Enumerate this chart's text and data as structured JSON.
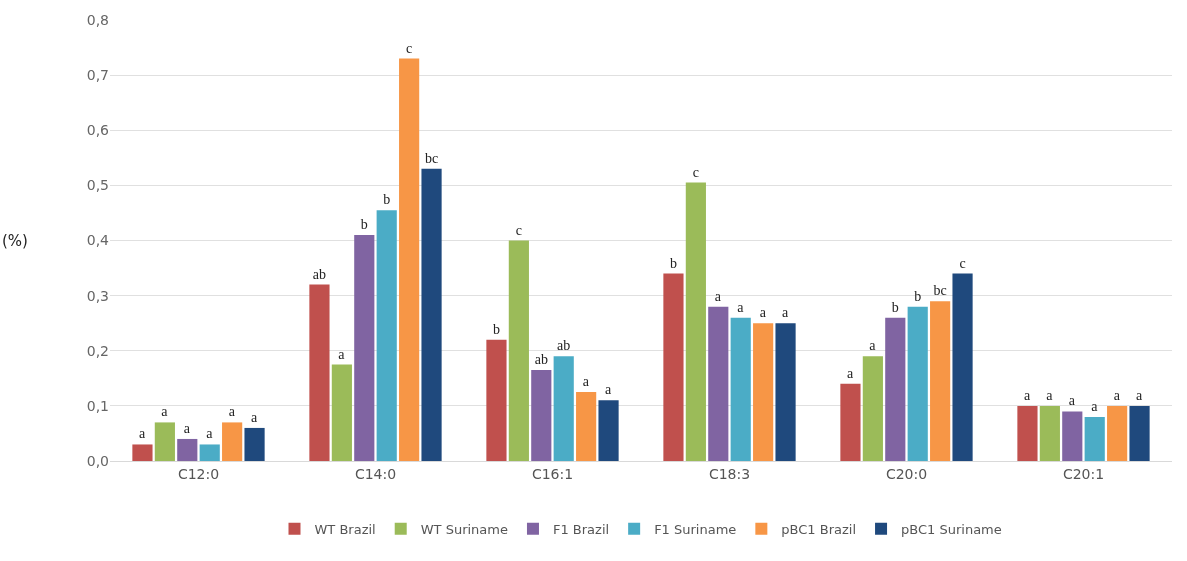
{
  "chart_data": {
    "type": "bar",
    "ylabel": "(%)",
    "categories": [
      "C12:0",
      "C14:0",
      "C16:1",
      "C18:3",
      "C20:0",
      "C20:1"
    ],
    "series": [
      {
        "name": "WT Brazil",
        "color": "#c0504d",
        "values": [
          0.03,
          0.32,
          0.22,
          0.34,
          0.14,
          0.1
        ],
        "value_labels": [
          "a",
          "ab",
          "b",
          "b",
          "a",
          "a"
        ]
      },
      {
        "name": "WT Suriname",
        "color": "#9bbb59",
        "values": [
          0.07,
          0.175,
          0.4,
          0.505,
          0.19,
          0.1
        ],
        "value_labels": [
          "a",
          "a",
          "c",
          "c",
          "a",
          "a"
        ]
      },
      {
        "name": "F1 Brazil",
        "color": "#8064a2",
        "values": [
          0.04,
          0.41,
          0.165,
          0.28,
          0.26,
          0.09
        ],
        "value_labels": [
          "a",
          "b",
          "ab",
          "a",
          "b",
          "a"
        ]
      },
      {
        "name": "F1 Suriname",
        "color": "#4bacc6",
        "values": [
          0.03,
          0.455,
          0.19,
          0.26,
          0.28,
          0.08
        ],
        "value_labels": [
          "a",
          "b",
          "ab",
          "a",
          "b",
          "a"
        ]
      },
      {
        "name": "pBC1 Brazil",
        "color": "#f79646",
        "values": [
          0.07,
          0.73,
          0.125,
          0.25,
          0.29,
          0.1
        ],
        "value_labels": [
          "a",
          "c",
          "a",
          "a",
          "bc",
          "a"
        ]
      },
      {
        "name": "pBC1 Suriname",
        "color": "#1f497d",
        "values": [
          0.06,
          0.53,
          0.11,
          0.25,
          0.34,
          0.1
        ],
        "value_labels": [
          "a",
          "bc",
          "a",
          "a",
          "c",
          "a"
        ]
      }
    ],
    "ylim": [
      0,
      0.8
    ],
    "yticks": [
      {
        "value": 0,
        "label": "0,0"
      },
      {
        "value": 0.1,
        "label": "0,1"
      },
      {
        "value": 0.2,
        "label": "0,2"
      },
      {
        "value": 0.3,
        "label": "0,3"
      },
      {
        "value": 0.4,
        "label": "0,4"
      },
      {
        "value": 0.5,
        "label": "0,5"
      },
      {
        "value": 0.6,
        "label": "0,6"
      },
      {
        "value": 0.7,
        "label": "0,7"
      },
      {
        "value": 0.8,
        "label": "0,8"
      }
    ],
    "grid": "y",
    "legend": "bottom"
  }
}
